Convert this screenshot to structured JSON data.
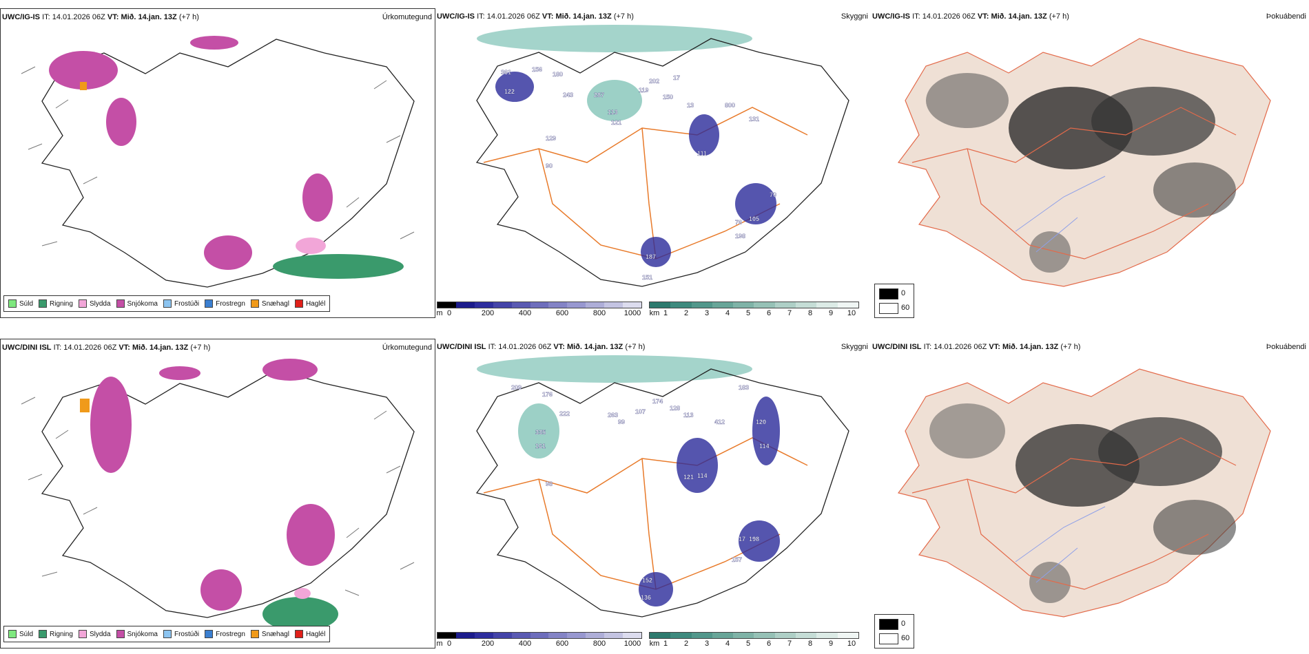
{
  "colors": {
    "sudl": "#7fe87f",
    "rigning": "#3a9a6c",
    "slydda": "#f2a6d8",
    "snjokoma": "#c44fa6",
    "frostudi": "#8cc4f0",
    "frostregn": "#3b7fd0",
    "snaehagl": "#f09a1a",
    "haglel": "#e0201a",
    "road": "#e87a2a",
    "coast": "#222222",
    "ceiling_dark": "#2a2a9a",
    "vis_teal": "#5ab0a0"
  },
  "rows": [
    {
      "precip": {
        "model": "UWC/IG-IS",
        "it_label": "IT:",
        "it": "14.01.2026 06Z",
        "vt_label": "VT:",
        "vt": "Mið. 14.jan. 13Z",
        "lead": "(+7 h)",
        "field": "Úrkomutegund"
      },
      "ceiling": {
        "model": "UWC/IG-IS",
        "it_label": "IT:",
        "it": "14.01.2026 06Z",
        "vt_label": "VT:",
        "vt": "Mið. 14.jan. 13Z",
        "lead": "(+7 h)",
        "field": "Skyggni",
        "labels": [
          "361",
          "156",
          "180",
          "243",
          "122",
          "287",
          "202",
          "17",
          "119",
          "150",
          "131",
          "113",
          "121",
          "129",
          "90",
          "111",
          "70",
          "105",
          "76",
          "198",
          "187",
          "151",
          "13",
          "800"
        ]
      },
      "cloud": {
        "model": "UWC/IG-IS",
        "it_label": "IT:",
        "it": "14.01.2026 06Z",
        "vt_label": "VT:",
        "vt": "Mið. 14.jan. 13Z",
        "lead": "(+7 h)",
        "field": "Þokuábendi"
      }
    },
    {
      "precip": {
        "model": "UWC/DINI ISL",
        "it_label": "IT:",
        "it": "14.01.2026 06Z",
        "vt_label": "VT:",
        "vt": "Mið. 14.jan. 13Z",
        "lead": "(+7 h)",
        "field": "Úrkomutegund"
      },
      "ceiling": {
        "model": "UWC/DINI ISL",
        "it_label": "IT:",
        "it": "14.01.2026 06Z",
        "vt_label": "VT:",
        "vt": "Mið. 14.jan. 13Z",
        "lead": "(+7 h)",
        "field": "Skyggni",
        "labels": [
          "209",
          "176",
          "222",
          "335",
          "161",
          "98",
          "263",
          "107",
          "174",
          "183",
          "412",
          "120",
          "114",
          "121",
          "114",
          "99",
          "17",
          "198",
          "157",
          "152",
          "136",
          "128",
          "113"
        ]
      },
      "cloud": {
        "model": "UWC/DINI ISL",
        "it_label": "IT:",
        "it": "14.01.2026 06Z",
        "vt_label": "VT:",
        "vt": "Mið. 14.jan. 13Z",
        "lead": "(+7 h)",
        "field": "Þokuábendi"
      }
    }
  ],
  "precip_legend": [
    "Súld",
    "Rigning",
    "Slydda",
    "Snjókoma",
    "Frostúði",
    "Frostregn",
    "Snæhagl",
    "Haglél"
  ],
  "ceiling_bar": {
    "unit": "m",
    "ticks": [
      "0",
      "200",
      "400",
      "600",
      "800",
      "1000"
    ],
    "colors": [
      "#000000",
      "#1c1c8c",
      "#2e2e9e",
      "#4444a8",
      "#5a5ab2",
      "#6e6ebc",
      "#8484c6",
      "#9898d0",
      "#aeaed8",
      "#c4c4e2",
      "#dcdcee"
    ]
  },
  "vis_bar": {
    "unit": "km",
    "ticks": [
      "1",
      "2",
      "3",
      "4",
      "5",
      "6",
      "7",
      "8",
      "9",
      "10"
    ],
    "colors": [
      "#2d7a6e",
      "#3e8a7e",
      "#52978b",
      "#68a598",
      "#7fb3a7",
      "#96c1b6",
      "#aecfc6",
      "#c5ddd6",
      "#dcebe6",
      "#f0f6f4"
    ]
  },
  "fog_legend": {
    "dark_value": "0",
    "light_value": "60"
  }
}
